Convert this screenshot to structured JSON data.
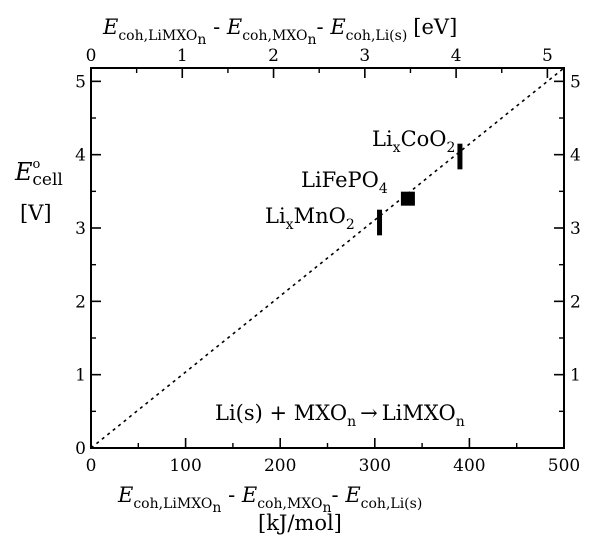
{
  "chart_data": {
    "type": "scatter",
    "bottom_axis": {
      "label_main": "E",
      "label_sub_1": "coh,LiMXO",
      "label_sub_1n": "n",
      "label_sep_1": " - ",
      "label_sub_2": "coh,MXO",
      "label_sub_2n": "n",
      "label_sep_2": "- ",
      "label_sub_3": "coh,Li(s)",
      "unit": "[kJ/mol]",
      "range": [
        0,
        500
      ],
      "ticks": [
        "0",
        "100",
        "200",
        "300",
        "400",
        "500"
      ]
    },
    "top_axis": {
      "unit": "[eV]",
      "range": [
        0,
        5.182
      ],
      "ticks": [
        "0",
        "1",
        "2",
        "3",
        "4",
        "5"
      ]
    },
    "left_axis": {
      "label_E": "E",
      "label_sup": "o",
      "label_sub": "cell",
      "unit": "[V]",
      "range": [
        0,
        5.182
      ],
      "ticks": [
        "0",
        "1",
        "2",
        "3",
        "4",
        "5"
      ]
    },
    "right_axis": {
      "ticks": [
        "1",
        "2",
        "3",
        "4",
        "5"
      ]
    },
    "diagonal_line": {
      "x": [
        0,
        500
      ],
      "y": [
        0,
        5.182
      ],
      "style": "dotted"
    },
    "points": [
      {
        "name": "LiFePO4",
        "label_main": "LiFePO",
        "label_sub": "4",
        "x": 335,
        "y": 3.4,
        "marker": "square"
      },
      {
        "name": "LixCoO2",
        "label_main_1": "Li",
        "label_sub_1": "x",
        "label_main_2": "CoO",
        "label_sub_2": "2",
        "x": 390,
        "y_range": [
          3.8,
          4.15
        ],
        "marker": "bar"
      },
      {
        "name": "LixMnO2",
        "label_main_1": "Li",
        "label_sub_1": "x",
        "label_main_2": "MnO",
        "label_sub_2": "2",
        "x": 305,
        "y_range": [
          2.9,
          3.25
        ],
        "marker": "bar"
      }
    ],
    "reaction": {
      "part1": "Li(s) + MXO",
      "part1_sub": "n",
      "arrow": "→",
      "part2": "LiMXO",
      "part2_sub": "n"
    },
    "grid": false
  }
}
